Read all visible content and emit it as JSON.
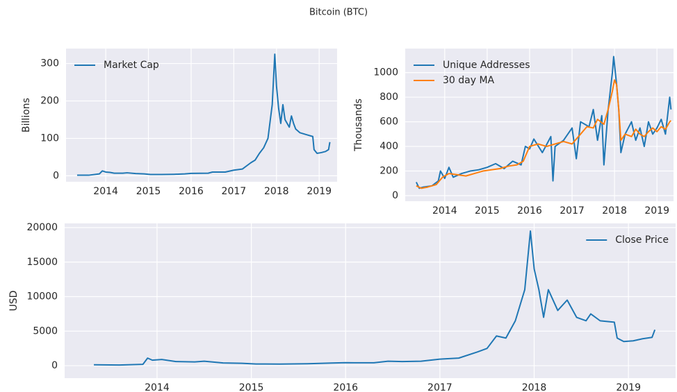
{
  "title": "Bitcoin (BTC)",
  "chart_data": [
    {
      "type": "line",
      "ylabel": "Billions",
      "legend": "upper left",
      "grid": true,
      "xlim": [
        2013.07,
        2019.42
      ],
      "xticks": [
        2014,
        2015,
        2016,
        2017,
        2018,
        2019
      ],
      "ylim": [
        -16,
        340
      ],
      "yticks": [
        0,
        100,
        200,
        300
      ],
      "series": [
        {
          "name": "Market Cap",
          "color": "#1f77b4",
          "x": [
            2013.33,
            2013.6,
            2013.85,
            2013.92,
            2014.0,
            2014.1,
            2014.2,
            2014.4,
            2014.5,
            2014.7,
            2014.9,
            2015.05,
            2015.3,
            2015.6,
            2015.85,
            2016.0,
            2016.4,
            2016.5,
            2016.8,
            2017.0,
            2017.2,
            2017.4,
            2017.5,
            2017.6,
            2017.7,
            2017.8,
            2017.9,
            2017.96,
            2018.0,
            2018.05,
            2018.1,
            2018.15,
            2018.2,
            2018.3,
            2018.35,
            2018.4,
            2018.45,
            2018.55,
            2018.7,
            2018.85,
            2018.88,
            2018.95,
            2019.05,
            2019.15,
            2019.22,
            2019.25
          ],
          "values": [
            1.5,
            1.5,
            5,
            13,
            10,
            9,
            7,
            7,
            8,
            6,
            5,
            3.5,
            3.5,
            4,
            5,
            6.5,
            7,
            10,
            10,
            15,
            18,
            35,
            42,
            60,
            75,
            100,
            190,
            325,
            240,
            180,
            140,
            190,
            150,
            130,
            160,
            140,
            125,
            115,
            110,
            105,
            70,
            60,
            62,
            65,
            70,
            90
          ]
        }
      ]
    },
    {
      "type": "line",
      "ylabel": "Thousands",
      "legend": "upper left",
      "grid": true,
      "xlim": [
        2013.07,
        2019.39
      ],
      "xticks": [
        2014,
        2015,
        2016,
        2017,
        2018,
        2019
      ],
      "ylim": [
        -45,
        1195
      ],
      "yticks": [
        0,
        200,
        400,
        600,
        800,
        1000
      ],
      "series": [
        {
          "name": "Unique Addresses",
          "color": "#1f77b4",
          "x": [
            2013.33,
            2013.4,
            2013.5,
            2013.7,
            2013.85,
            2013.9,
            2014.0,
            2014.1,
            2014.2,
            2014.4,
            2014.6,
            2014.8,
            2015.0,
            2015.2,
            2015.4,
            2015.6,
            2015.8,
            2015.9,
            2016.0,
            2016.1,
            2016.3,
            2016.5,
            2016.55,
            2016.6,
            2016.8,
            2017.0,
            2017.1,
            2017.2,
            2017.4,
            2017.5,
            2017.6,
            2017.7,
            2017.75,
            2017.85,
            2017.95,
            2017.98,
            2018.05,
            2018.1,
            2018.15,
            2018.25,
            2018.4,
            2018.5,
            2018.6,
            2018.7,
            2018.8,
            2018.9,
            2019.0,
            2019.1,
            2019.2,
            2019.3,
            2019.33
          ],
          "values": [
            110,
            60,
            70,
            80,
            120,
            200,
            140,
            230,
            150,
            180,
            200,
            210,
            230,
            260,
            220,
            280,
            250,
            400,
            380,
            460,
            350,
            480,
            120,
            400,
            450,
            550,
            300,
            600,
            560,
            700,
            450,
            650,
            250,
            700,
            1000,
            1130,
            900,
            700,
            350,
            500,
            600,
            450,
            550,
            400,
            600,
            500,
            550,
            620,
            500,
            800,
            700
          ]
        },
        {
          "name": "30 day MA",
          "color": "#ff7f0e",
          "x": [
            2013.33,
            2013.45,
            2013.6,
            2013.8,
            2013.95,
            2014.1,
            2014.3,
            2014.5,
            2014.7,
            2014.9,
            2015.1,
            2015.3,
            2015.5,
            2015.7,
            2015.85,
            2016.0,
            2016.2,
            2016.4,
            2016.6,
            2016.8,
            2017.0,
            2017.2,
            2017.35,
            2017.5,
            2017.6,
            2017.75,
            2017.85,
            2017.95,
            2018.0,
            2018.05,
            2018.1,
            2018.15,
            2018.25,
            2018.4,
            2018.5,
            2018.6,
            2018.7,
            2018.8,
            2018.9,
            2019.0,
            2019.1,
            2019.2,
            2019.3,
            2019.33
          ],
          "values": [
            80,
            60,
            70,
            90,
            150,
            180,
            170,
            160,
            180,
            200,
            210,
            220,
            240,
            250,
            280,
            400,
            420,
            400,
            420,
            440,
            420,
            500,
            560,
            550,
            620,
            580,
            700,
            850,
            940,
            900,
            700,
            450,
            500,
            480,
            540,
            500,
            480,
            520,
            550,
            520,
            560,
            540,
            600,
            610
          ]
        }
      ]
    },
    {
      "type": "line",
      "ylabel": "USD",
      "legend": "upper right",
      "grid": true,
      "xlim": [
        2013.02,
        2019.5
      ],
      "xticks": [
        2014,
        2015,
        2016,
        2017,
        2018,
        2019
      ],
      "ylim": [
        -1800,
        20600
      ],
      "yticks": [
        0,
        5000,
        10000,
        15000,
        20000
      ],
      "series": [
        {
          "name": "Close Price",
          "color": "#1f77b4",
          "x": [
            2013.33,
            2013.6,
            2013.85,
            2013.9,
            2013.95,
            2014.05,
            2014.2,
            2014.4,
            2014.5,
            2014.7,
            2014.9,
            2015.05,
            2015.3,
            2015.6,
            2015.85,
            2016.0,
            2016.3,
            2016.45,
            2016.6,
            2016.8,
            2017.0,
            2017.2,
            2017.4,
            2017.5,
            2017.6,
            2017.7,
            2017.8,
            2017.9,
            2017.96,
            2018.0,
            2018.05,
            2018.1,
            2018.15,
            2018.25,
            2018.35,
            2018.45,
            2018.55,
            2018.6,
            2018.7,
            2018.85,
            2018.88,
            2018.95,
            2019.05,
            2019.15,
            2019.25,
            2019.28
          ],
          "values": [
            130,
            100,
            200,
            1100,
            800,
            900,
            600,
            550,
            650,
            400,
            350,
            250,
            230,
            280,
            380,
            430,
            420,
            650,
            600,
            650,
            950,
            1100,
            2000,
            2500,
            4300,
            4000,
            6500,
            11000,
            19500,
            14000,
            11000,
            7000,
            11000,
            8000,
            9500,
            7000,
            6500,
            7500,
            6500,
            6300,
            4000,
            3500,
            3600,
            3900,
            4100,
            5200
          ]
        }
      ]
    }
  ]
}
